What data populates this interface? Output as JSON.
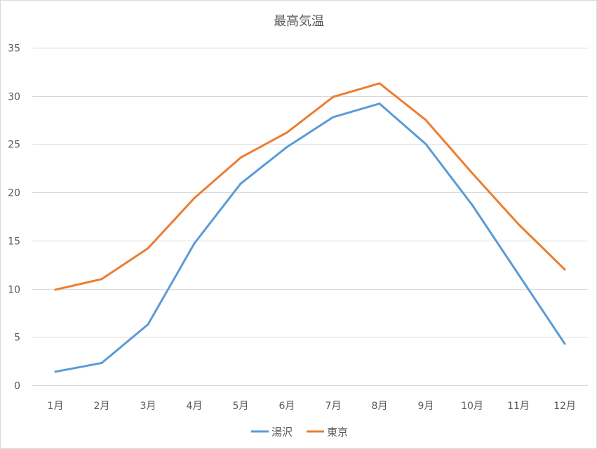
{
  "chart_data": {
    "type": "line",
    "title": "最高気温",
    "xlabel": "",
    "ylabel": "",
    "ylim": [
      0,
      35
    ],
    "yticks": [
      0,
      5,
      10,
      15,
      20,
      25,
      30,
      35
    ],
    "grid": true,
    "legend_position": "bottom",
    "categories": [
      "1月",
      "2月",
      "3月",
      "4月",
      "5月",
      "6月",
      "7月",
      "8月",
      "9月",
      "10月",
      "11月",
      "12月"
    ],
    "series": [
      {
        "name": "湯沢",
        "color": "#5b9bd5",
        "values": [
          1.4,
          2.3,
          6.3,
          14.7,
          20.9,
          24.7,
          27.8,
          29.2,
          25.0,
          18.7,
          11.5,
          4.3
        ]
      },
      {
        "name": "東京",
        "color": "#ed7d31",
        "values": [
          9.9,
          11.0,
          14.2,
          19.4,
          23.6,
          26.2,
          29.9,
          31.3,
          27.5,
          22.0,
          16.7,
          12.0
        ]
      }
    ]
  }
}
